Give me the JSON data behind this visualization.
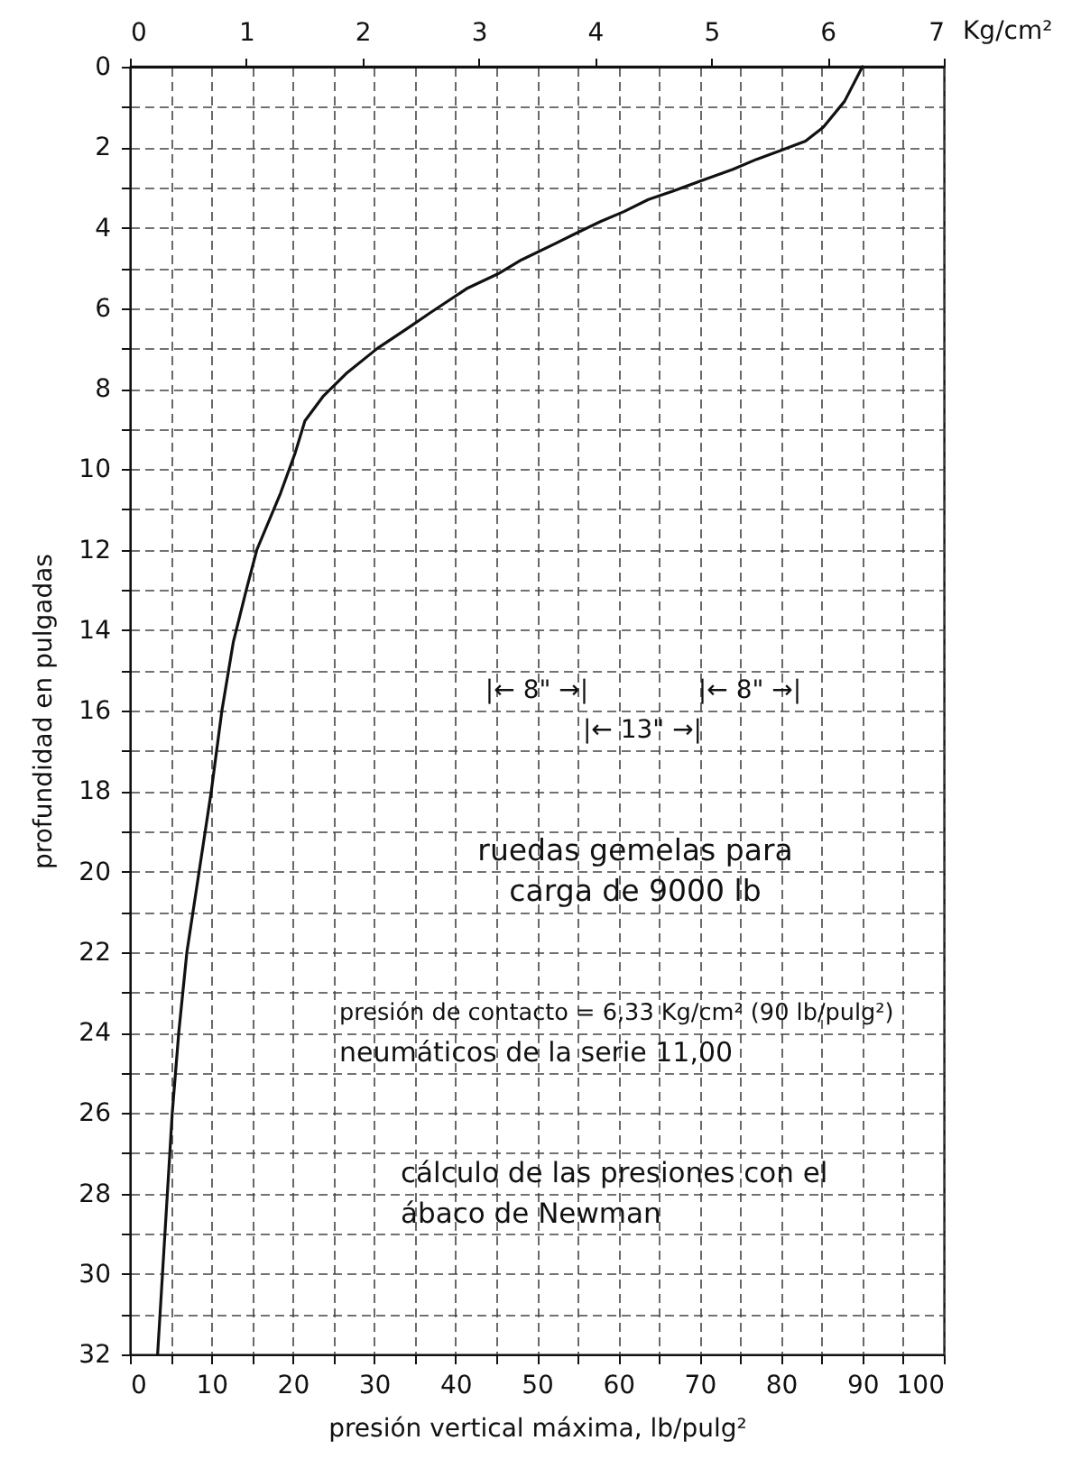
{
  "chart_data": {
    "type": "line",
    "xlabel": "presión vertical máxima, lb/pulg²",
    "ylabel": "profundidad en pulgadas",
    "x2label": "Kg/cm²",
    "xlim": [
      0,
      100
    ],
    "xticks": [
      0,
      {
        "value": 5,
        "label": null
      },
      10,
      {
        "value": 15,
        "label": null
      },
      20,
      {
        "value": 25,
        "label": null
      },
      30,
      {
        "value": 35,
        "label": null
      },
      40,
      {
        "value": 45,
        "label": null
      },
      50,
      {
        "value": 55,
        "label": null
      },
      60,
      {
        "value": 65,
        "label": null
      },
      70,
      {
        "value": 75,
        "label": null
      },
      80,
      {
        "value": 85,
        "label": null
      },
      90,
      {
        "value": 95,
        "label": null
      },
      100
    ],
    "x2lim": [
      0,
      7
    ],
    "x2ticks": [
      0,
      1,
      2,
      3,
      4,
      5,
      6,
      7
    ],
    "ylim": [
      32,
      0
    ],
    "yticks": [
      0,
      {
        "value": 1,
        "label": null
      },
      2,
      {
        "value": 3,
        "label": null
      },
      4,
      {
        "value": 5,
        "label": null
      },
      6,
      {
        "value": 7,
        "label": null
      },
      8,
      {
        "value": 9,
        "label": null
      },
      10,
      {
        "value": 11,
        "label": null
      },
      12,
      {
        "value": 13,
        "label": null
      },
      14,
      {
        "value": 15,
        "label": null
      },
      16,
      {
        "value": 17,
        "label": null
      },
      18,
      {
        "value": 19,
        "label": null
      },
      20,
      {
        "value": 21,
        "label": null
      },
      22,
      {
        "value": 23,
        "label": null
      },
      24,
      {
        "value": 25,
        "label": null
      },
      26,
      {
        "value": 27,
        "label": null
      },
      28,
      {
        "value": 29,
        "label": null
      },
      30,
      {
        "value": 31,
        "label": null
      },
      32
    ],
    "grid": true,
    "series": [
      {
        "color": "#111111",
        "x": [
          90,
          87.8,
          85.2,
          83,
          80,
          77,
          74.1,
          70.4,
          66.7,
          63.7,
          60.7,
          57.8,
          54.8,
          52.2,
          48.1,
          45.2,
          41.5,
          37,
          34.1,
          30.4,
          26.7,
          23.7,
          21.5,
          20.3,
          18.5,
          15.6,
          14.3,
          12.7,
          11.3,
          10.0,
          8.5,
          7.0,
          6.0,
          5.2,
          4.6,
          4.0,
          3.4
        ],
        "values": [
          0,
          0.86,
          1.5,
          1.85,
          2.08,
          2.3,
          2.55,
          2.82,
          3.09,
          3.3,
          3.6,
          3.85,
          4.14,
          4.4,
          4.8,
          5.15,
          5.5,
          6.1,
          6.5,
          7,
          7.6,
          8.2,
          8.8,
          9.6,
          10.6,
          12,
          13,
          14.3,
          16,
          18,
          20,
          22,
          24,
          26,
          28,
          30,
          32
        ]
      }
    ],
    "annotations": [
      "|← 8\" →|",
      "|← 8\" →|",
      "|← 13\" →|",
      "ruedas gemelas para\ncarga de 9000 lb",
      "presión de contacto = 6,33 Kg/cm² (90 lb/pulg²)",
      "neumáticos de la serie 11,00",
      "cálculo de las presiones con el\nábaco de Newman"
    ]
  }
}
